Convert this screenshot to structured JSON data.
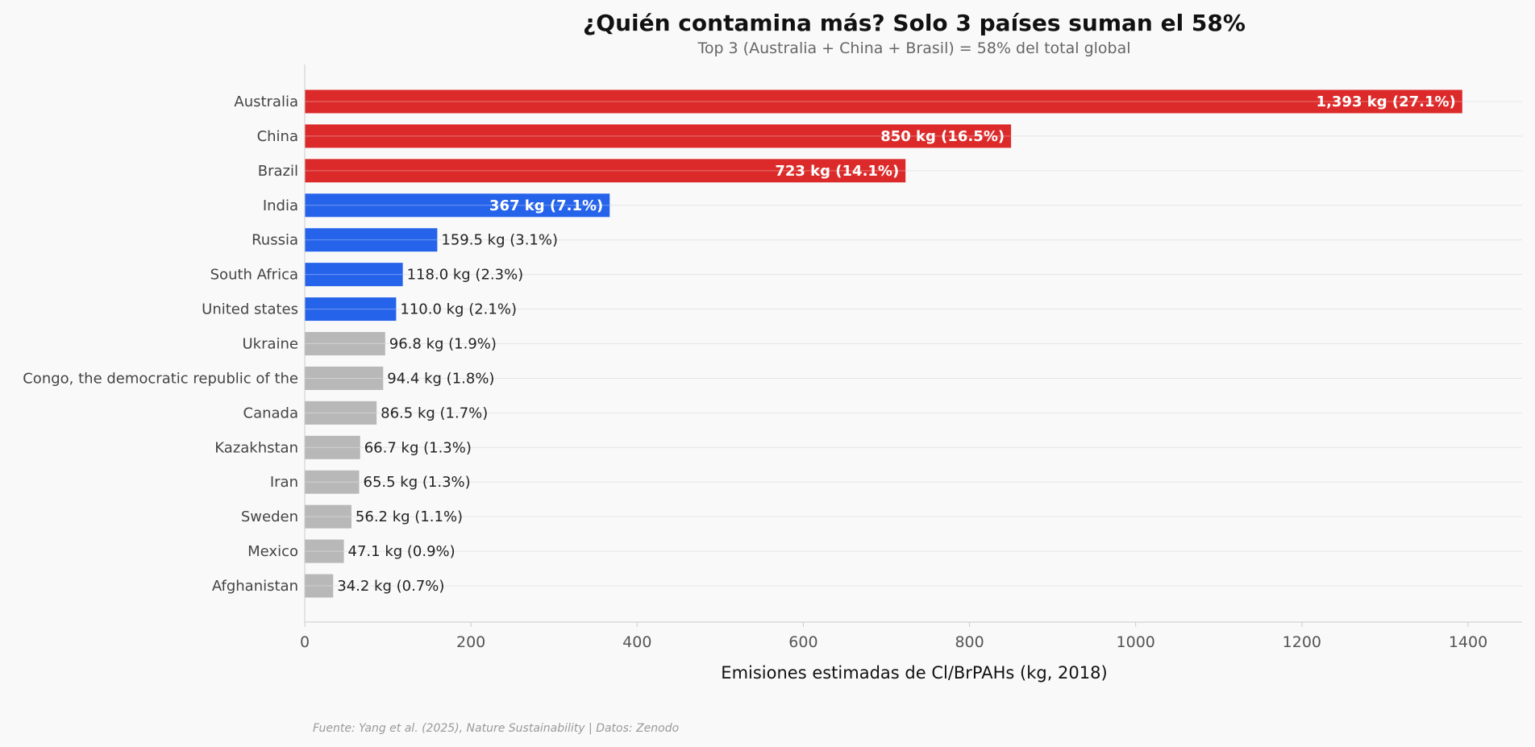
{
  "chart_data": {
    "type": "bar",
    "orientation": "horizontal",
    "title": "¿Quién contamina más? Solo 3 países suman el 58%",
    "subtitle": "Top 3 (Australia + China + Brasil) = 58% del total global",
    "xlabel": "Emisiones estimadas de Cl/BrPAHs (kg, 2018)",
    "ylabel": "",
    "xlim": [
      0,
      1465
    ],
    "xticks": [
      0,
      200,
      400,
      600,
      800,
      1000,
      1200,
      1400
    ],
    "grid": "horizontal",
    "source": "Fuente: Yang et al. (2025), Nature Sustainability | Datos: Zenodo",
    "categories": [
      "Australia",
      "China",
      "Brazil",
      "India",
      "Russia",
      "South Africa",
      "United states",
      "Ukraine",
      "Congo, the democratic republic of the",
      "Canada",
      "Kazakhstan",
      "Iran",
      "Sweden",
      "Mexico",
      "Afghanistan"
    ],
    "values": [
      1393,
      850,
      723,
      367,
      159.5,
      118.0,
      110.0,
      96.8,
      94.4,
      86.5,
      66.7,
      65.5,
      56.2,
      47.1,
      34.2
    ],
    "labels": [
      "1,393 kg (27.1%)",
      "850 kg (16.5%)",
      "723 kg (14.1%)",
      "367 kg (7.1%)",
      "159.5 kg (3.1%)",
      "118.0 kg (2.3%)",
      "110.0 kg (2.1%)",
      "96.8 kg (1.9%)",
      "94.4 kg (1.8%)",
      "86.5 kg (1.7%)",
      "66.7 kg (1.3%)",
      "65.5 kg (1.3%)",
      "56.2 kg (1.1%)",
      "47.1 kg (0.9%)",
      "34.2 kg (0.7%)"
    ],
    "label_inside": [
      true,
      true,
      true,
      true,
      false,
      false,
      false,
      false,
      false,
      false,
      false,
      false,
      false,
      false,
      false
    ],
    "groups": [
      "top3",
      "top3",
      "top3",
      "next",
      "next",
      "next",
      "next",
      "rest",
      "rest",
      "rest",
      "rest",
      "rest",
      "rest",
      "rest",
      "rest"
    ],
    "colors": {
      "top3": "#dc2a2a",
      "next": "#2563eb",
      "rest": "#b8b8b8"
    }
  }
}
